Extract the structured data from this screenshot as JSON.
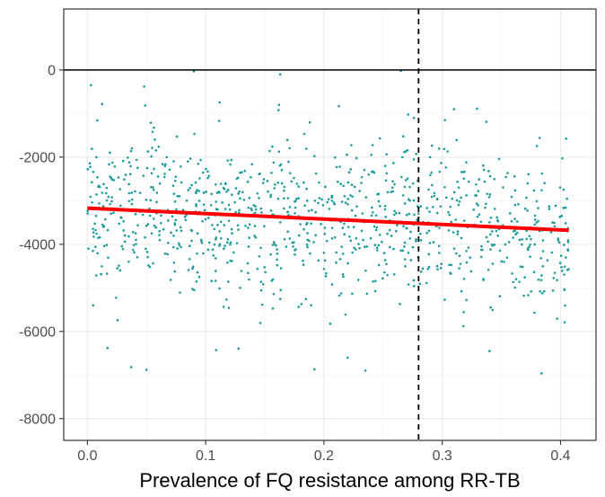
{
  "chart_data": {
    "type": "scatter",
    "title": "",
    "xlabel": "Prevalence of FQ resistance among RR-TB",
    "ylabel": "",
    "xlim": [
      -0.02,
      0.43
    ],
    "ylim": [
      -8500,
      1400
    ],
    "x_ticks": [
      0.0,
      0.1,
      0.2,
      0.3,
      0.4
    ],
    "x_tick_labels": [
      "0.0",
      "0.1",
      "0.2",
      "0.3",
      "0.4"
    ],
    "y_ticks": [
      -8000,
      -6000,
      -4000,
      -2000,
      0
    ],
    "y_tick_labels": [
      "-8000",
      "-6000",
      "-4000",
      "-2000",
      "0"
    ],
    "grid": true,
    "legend": "none",
    "point_color": "#1a9a9a",
    "trend_color": "#ff0000",
    "trend_line": {
      "x": [
        0.0,
        0.407
      ],
      "y": [
        -3170,
        -3680
      ]
    },
    "reference_hline_y": 0,
    "reference_vline_x": 0.28,
    "n_points": 1000,
    "x_range": [
      0.0,
      0.407
    ],
    "y_center_at_0": -3170,
    "y_center_at_max": -3680,
    "y_spread_sd": 950,
    "highlighted_points": [
      {
        "x": 0.003,
        "y": -350
      },
      {
        "x": 0.048,
        "y": -380
      },
      {
        "x": 0.09,
        "y": -30
      },
      {
        "x": 0.163,
        "y": -100
      },
      {
        "x": 0.265,
        "y": -20
      },
      {
        "x": 0.017,
        "y": -6380
      },
      {
        "x": 0.037,
        "y": -6820
      },
      {
        "x": 0.05,
        "y": -6880
      },
      {
        "x": 0.192,
        "y": -6870
      },
      {
        "x": 0.235,
        "y": -6900
      },
      {
        "x": 0.384,
        "y": -6960
      },
      {
        "x": 0.31,
        "y": -900
      },
      {
        "x": 0.162,
        "y": -800
      },
      {
        "x": 0.34,
        "y": -6450
      },
      {
        "x": 0.22,
        "y": -6600
      }
    ]
  },
  "colors": {
    "panel_border": "#333333",
    "grid_major": "#ebebeb",
    "grid_minor": "#f5f5f5",
    "reference_lines": "#000000"
  }
}
